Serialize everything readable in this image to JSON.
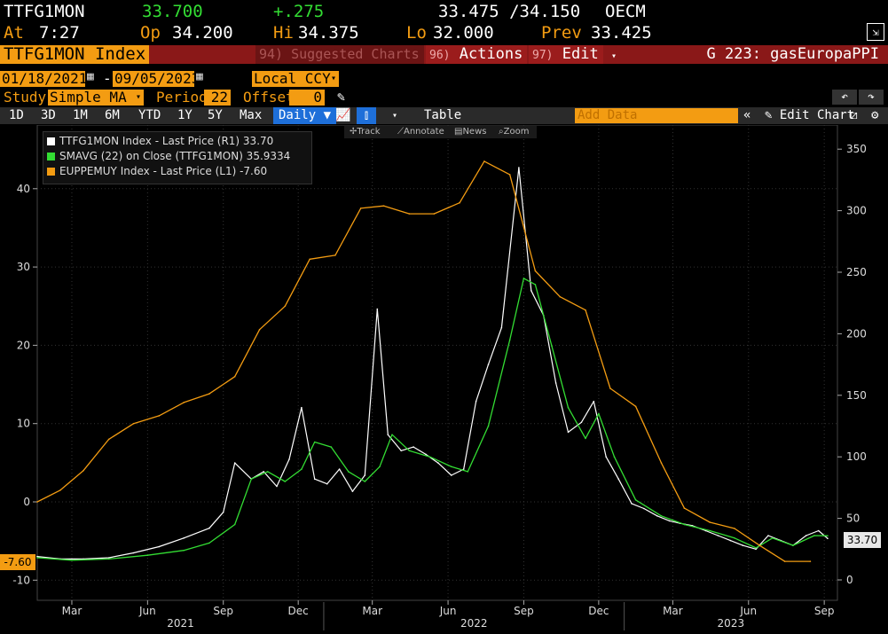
{
  "quote": {
    "ticker": "TTFG1MON",
    "last": "33.700",
    "change": "+.275",
    "bid_ask": "33.475 /34.150",
    "source": "OECM",
    "time_label": "At",
    "time": "7:27",
    "open_label": "Op",
    "open": "34.200",
    "high_label": "Hi",
    "high": "34.375",
    "low_label": "Lo",
    "low": "32.000",
    "prev_label": "Prev",
    "prev": "33.425"
  },
  "titlebar": {
    "security": "TTFG1MON Index",
    "suggested": "94) Suggested Charts",
    "actions_num": "96)",
    "actions": "Actions",
    "edit_num": "97)",
    "edit": "Edit",
    "chart_title": "G 223: gasEuropaPPI"
  },
  "range": {
    "start": "01/18/2021",
    "end": "09/05/2023",
    "currency": "Local CCY"
  },
  "study": {
    "label": "Study",
    "type": "Simple MA",
    "period_label": "Period",
    "period": "22",
    "offset_label": "Offset",
    "offset": "0"
  },
  "toolbar": {
    "ranges": [
      "1D",
      "3D",
      "1M",
      "6M",
      "YTD",
      "1Y",
      "5Y",
      "Max"
    ],
    "frequency": "Daily",
    "table": "Table",
    "add_data": "Add Data",
    "edit_chart": "Edit Chart"
  },
  "controls": {
    "track": "Track",
    "annotate": "Annotate",
    "news": "News",
    "zoom": "Zoom"
  },
  "legend": [
    {
      "text": "TTFG1MON Index - Last Price (R1) 33.70",
      "color": "#ffffff"
    },
    {
      "text": "SMAVG (22)  on Close (TTFG1MON) 35.9334",
      "color": "#33dd33"
    },
    {
      "text": "EUPPEMUY Index - Last Price (L1) -7.60",
      "color": "#f39c12"
    }
  ],
  "chart_data": {
    "type": "line",
    "left_axis": {
      "ticks": [
        -10,
        0,
        10,
        20,
        30,
        40
      ],
      "ylim": [
        -10.5,
        48
      ]
    },
    "right_axis": {
      "ticks": [
        0,
        50,
        100,
        150,
        200,
        250,
        300,
        350
      ],
      "ylim": [
        -5,
        372
      ]
    },
    "x_months": [
      "Mar",
      "Jun",
      "Sep",
      "Dec",
      "Mar",
      "Jun",
      "Sep",
      "Dec",
      "Mar",
      "Jun",
      "Sep"
    ],
    "x_years": [
      "2021",
      "2022",
      "2023"
    ],
    "series": [
      {
        "name": "TTFG1MON Index - Last Price (R1)",
        "axis": "right",
        "color": "#ffffff",
        "x": [
          "2021-01-18",
          "2021-02-15",
          "2021-03-15",
          "2021-04-15",
          "2021-05-15",
          "2021-06-15",
          "2021-07-15",
          "2021-08-15",
          "2021-09-01",
          "2021-09-15",
          "2021-10-05",
          "2021-10-20",
          "2021-11-05",
          "2021-11-20",
          "2021-12-05",
          "2021-12-21",
          "2022-01-05",
          "2022-01-20",
          "2022-02-05",
          "2022-02-20",
          "2022-03-07",
          "2022-03-20",
          "2022-04-05",
          "2022-04-20",
          "2022-05-05",
          "2022-05-20",
          "2022-06-05",
          "2022-06-20",
          "2022-07-05",
          "2022-07-20",
          "2022-08-05",
          "2022-08-26",
          "2022-09-10",
          "2022-09-25",
          "2022-10-10",
          "2022-10-25",
          "2022-11-10",
          "2022-11-25",
          "2022-12-10",
          "2022-12-25",
          "2023-01-10",
          "2023-01-25",
          "2023-02-10",
          "2023-02-25",
          "2023-03-10",
          "2023-03-25",
          "2023-04-10",
          "2023-04-25",
          "2023-05-10",
          "2023-05-25",
          "2023-06-10",
          "2023-06-25",
          "2023-07-10",
          "2023-07-25",
          "2023-08-10",
          "2023-08-25",
          "2023-09-05"
        ],
        "values": [
          19,
          17,
          17,
          18,
          22,
          27,
          34,
          42,
          55,
          95,
          82,
          88,
          76,
          98,
          140,
          82,
          78,
          90,
          72,
          85,
          220,
          118,
          105,
          108,
          102,
          95,
          85,
          90,
          145,
          175,
          205,
          335,
          235,
          215,
          160,
          120,
          128,
          145,
          100,
          82,
          62,
          58,
          52,
          48,
          46,
          44,
          40,
          36,
          32,
          28,
          25,
          36,
          32,
          28,
          36,
          40,
          33.7
        ]
      },
      {
        "name": "SMAVG (22) on Close (TTFG1MON)",
        "axis": "right",
        "color": "#33dd33",
        "x": [
          "2021-01-18",
          "2021-03-01",
          "2021-04-15",
          "2021-06-01",
          "2021-07-15",
          "2021-08-15",
          "2021-09-15",
          "2021-10-05",
          "2021-10-25",
          "2021-11-15",
          "2021-12-05",
          "2021-12-21",
          "2022-01-10",
          "2022-01-31",
          "2022-02-20",
          "2022-03-10",
          "2022-03-25",
          "2022-04-15",
          "2022-05-10",
          "2022-06-05",
          "2022-06-25",
          "2022-07-20",
          "2022-08-15",
          "2022-09-01",
          "2022-09-15",
          "2022-10-05",
          "2022-10-25",
          "2022-11-15",
          "2022-12-01",
          "2022-12-20",
          "2023-01-15",
          "2023-02-15",
          "2023-03-15",
          "2023-04-15",
          "2023-05-15",
          "2023-06-10",
          "2023-06-30",
          "2023-07-25",
          "2023-08-20",
          "2023-09-05"
        ],
        "values": [
          18,
          16,
          17,
          20,
          24,
          30,
          45,
          82,
          88,
          80,
          90,
          112,
          108,
          88,
          80,
          92,
          118,
          105,
          100,
          92,
          88,
          125,
          195,
          245,
          240,
          190,
          140,
          115,
          135,
          100,
          65,
          52,
          45,
          40,
          34,
          26,
          34,
          28,
          36,
          35.9
        ]
      },
      {
        "name": "EUPPEMUY Index - Last Price (L1)",
        "axis": "left",
        "color": "#f39c12",
        "x": [
          "2021-01-18",
          "2021-02-15",
          "2021-03-15",
          "2021-04-15",
          "2021-05-15",
          "2021-06-15",
          "2021-07-15",
          "2021-08-15",
          "2021-09-15",
          "2021-10-15",
          "2021-11-15",
          "2021-12-15",
          "2022-01-15",
          "2022-02-15",
          "2022-03-15",
          "2022-04-15",
          "2022-05-15",
          "2022-06-15",
          "2022-07-15",
          "2022-08-15",
          "2022-09-15",
          "2022-10-15",
          "2022-11-15",
          "2022-12-15",
          "2023-01-15",
          "2023-02-15",
          "2023-03-15",
          "2023-04-15",
          "2023-05-15",
          "2023-06-15",
          "2023-07-15",
          "2023-08-15"
        ],
        "values": [
          0,
          1.5,
          4,
          8,
          10,
          11,
          12.7,
          13.8,
          16,
          22,
          25,
          31,
          31.5,
          37.5,
          37.8,
          36.8,
          36.8,
          38.2,
          43.5,
          41.8,
          29.5,
          26.2,
          24.5,
          14.5,
          12.2,
          5,
          -0.8,
          -2.6,
          -3.4,
          -5.6,
          -7.6,
          -7.6
        ]
      }
    ],
    "last_labels": {
      "right": "33.70",
      "left": "-7.60"
    }
  }
}
